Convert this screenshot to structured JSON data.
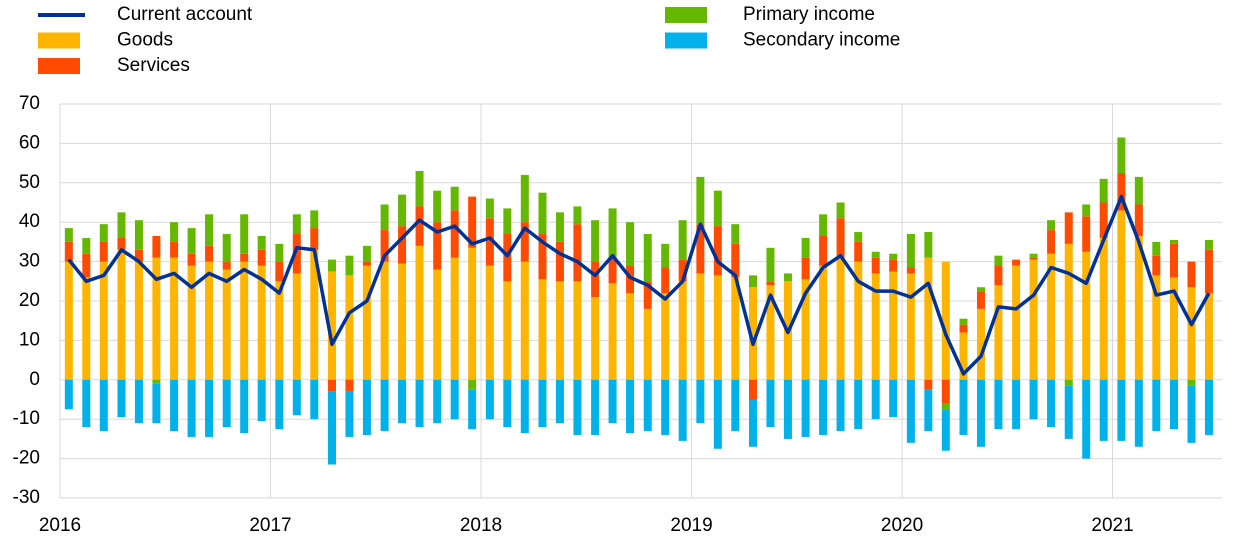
{
  "chart_data": {
    "type": "bar",
    "stacked": true,
    "x": [
      2016.042,
      2016.125,
      2016.208,
      2016.292,
      2016.375,
      2016.458,
      2016.542,
      2016.625,
      2016.708,
      2016.792,
      2016.875,
      2016.958,
      2017.042,
      2017.125,
      2017.208,
      2017.292,
      2017.375,
      2017.458,
      2017.542,
      2017.625,
      2017.708,
      2017.792,
      2017.875,
      2017.958,
      2018.042,
      2018.125,
      2018.208,
      2018.292,
      2018.375,
      2018.458,
      2018.542,
      2018.625,
      2018.708,
      2018.792,
      2018.875,
      2018.958,
      2019.042,
      2019.125,
      2019.208,
      2019.292,
      2019.375,
      2019.458,
      2019.542,
      2019.625,
      2019.708,
      2019.792,
      2019.875,
      2019.958,
      2020.042,
      2020.125,
      2020.208,
      2020.292,
      2020.375,
      2020.458,
      2020.542,
      2020.625,
      2020.708,
      2020.792,
      2020.875,
      2020.958,
      2021.042,
      2021.125,
      2021.208,
      2021.292,
      2021.375,
      2021.458
    ],
    "series": [
      {
        "name": "Current account",
        "type": "line",
        "color": "#003299",
        "values": [
          30.5,
          25,
          26.5,
          33,
          30,
          25.5,
          27,
          23.5,
          27,
          25,
          28,
          25.5,
          22,
          33.5,
          33,
          9,
          17,
          20,
          31.5,
          36,
          40.5,
          37.5,
          39,
          34.5,
          36,
          31.5,
          38.5,
          35,
          32,
          30,
          26.5,
          31.5,
          26,
          24,
          20.5,
          25,
          39.5,
          30,
          26.5,
          9,
          21.5,
          12,
          22,
          28.5,
          31.5,
          25,
          22.5,
          22.5,
          21,
          24.5,
          11.5,
          1.5,
          6,
          18.5,
          18,
          21.5,
          28.5,
          27,
          24.5,
          35.5,
          46.5,
          35,
          21.5,
          22.5,
          14,
          22
        ]
      },
      {
        "name": "Goods",
        "color": "#FFB400",
        "values": [
          30,
          26,
          30,
          33,
          30,
          31,
          31,
          29,
          30,
          28,
          30,
          29,
          25,
          27,
          33,
          27.5,
          26.5,
          29,
          30,
          29.5,
          34,
          28,
          31,
          33.5,
          29,
          25,
          30,
          25.5,
          25,
          25,
          21,
          24.5,
          22,
          18,
          22,
          25,
          27,
          26.5,
          26,
          23.5,
          24,
          25,
          25.5,
          29,
          31,
          30,
          27,
          27.5,
          27,
          31,
          30,
          12,
          18,
          24,
          29,
          30.5,
          32,
          34.5,
          32.5,
          36,
          43,
          36.5,
          26.5,
          26,
          23.5,
          22
        ]
      },
      {
        "name": "Services",
        "color": "#FF4B00",
        "values": [
          5,
          6,
          5,
          3,
          3,
          5.5,
          4,
          3,
          4,
          2,
          2,
          4,
          5,
          10,
          5.5,
          -3,
          -3,
          1,
          8,
          9.5,
          10,
          12,
          12,
          13,
          12,
          12,
          10,
          11.5,
          10,
          14.5,
          9,
          6.5,
          7,
          7,
          6.5,
          5.5,
          12.5,
          12.5,
          8.5,
          -5,
          1,
          0,
          5.5,
          7.5,
          10,
          5,
          4,
          3,
          1.5,
          -2.5,
          -6,
          2,
          4.5,
          5,
          1.5,
          0.5,
          6,
          8,
          9,
          9,
          9.5,
          8,
          5,
          8.5,
          6.5,
          11
        ]
      },
      {
        "name": "Primary income",
        "color": "#65B800",
        "values": [
          3.5,
          4,
          4.5,
          6.5,
          7.5,
          -1,
          5,
          6.5,
          8,
          7,
          10,
          3.5,
          4.5,
          5,
          4.5,
          3,
          5,
          4,
          6.5,
          8,
          9,
          8,
          6,
          -2.5,
          5,
          6.5,
          12,
          10.5,
          7.5,
          4.5,
          10.5,
          12.5,
          11,
          12,
          6,
          10,
          12,
          9,
          5,
          3,
          8.5,
          2,
          5,
          5.5,
          4,
          2.5,
          1.5,
          1.5,
          8.5,
          6.5,
          -1.5,
          1.5,
          1,
          2.5,
          0,
          1,
          2.5,
          -1.5,
          3,
          6,
          9,
          7,
          3.5,
          1,
          -1.5,
          2.5
        ]
      },
      {
        "name": "Secondary income",
        "color": "#00B1EA",
        "values": [
          -7.5,
          -12,
          -13,
          -9.5,
          -11,
          -10,
          -13,
          -14.5,
          -14.5,
          -12,
          -13.5,
          -10.5,
          -12.5,
          -9,
          -10,
          -18.5,
          -11.5,
          -14,
          -13,
          -11,
          -12,
          -11,
          -10,
          -10,
          -10,
          -12,
          -13.5,
          -12,
          -11,
          -14,
          -14,
          -11,
          -13.5,
          -13,
          -14,
          -15.5,
          -11,
          -17.5,
          -13,
          -12,
          -12,
          -15,
          -14.5,
          -14,
          -13,
          -12.5,
          -10,
          -9.5,
          -16,
          -10.5,
          -10.5,
          -14,
          -17,
          -12.5,
          -12.5,
          -10,
          -12,
          -13.5,
          -20,
          -15.5,
          -15.5,
          -17,
          -13,
          -12.5,
          -14.5,
          -14
        ]
      }
    ],
    "xlim": [
      2016,
      2021.52
    ],
    "xticks": [
      2016,
      2017,
      2018,
      2019,
      2020,
      2021
    ],
    "ylim": [
      -30,
      70
    ],
    "yticks": [
      -30,
      -20,
      -10,
      0,
      10,
      20,
      30,
      40,
      50,
      60,
      70
    ],
    "grid": true
  }
}
